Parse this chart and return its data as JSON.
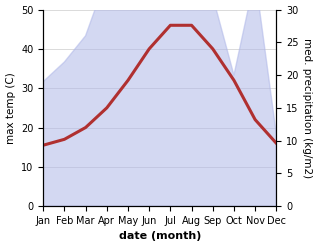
{
  "months": [
    "Jan",
    "Feb",
    "Mar",
    "Apr",
    "May",
    "Jun",
    "Jul",
    "Aug",
    "Sep",
    "Oct",
    "Nov",
    "Dec"
  ],
  "temp": [
    15.5,
    17,
    20,
    25,
    32,
    40,
    46,
    46,
    40,
    32,
    22,
    16
  ],
  "precip": [
    19,
    22,
    26,
    35,
    50,
    43,
    44,
    33,
    32,
    20,
    35,
    11
  ],
  "temp_color": "#b03030",
  "precip_fill_color": "#b0b8e8",
  "precip_fill_alpha": 0.55,
  "left_ylim": [
    0,
    50
  ],
  "right_ylim": [
    0,
    30
  ],
  "left_yticks": [
    0,
    10,
    20,
    30,
    40,
    50
  ],
  "right_yticks": [
    0,
    5,
    10,
    15,
    20,
    25,
    30
  ],
  "xlabel": "date (month)",
  "ylabel_left": "max temp (C)",
  "ylabel_right": "med. precipitation (kg/m2)",
  "temp_linewidth": 2.2,
  "xlabel_fontsize": 8,
  "ylabel_fontsize": 7.5,
  "tick_fontsize": 7
}
